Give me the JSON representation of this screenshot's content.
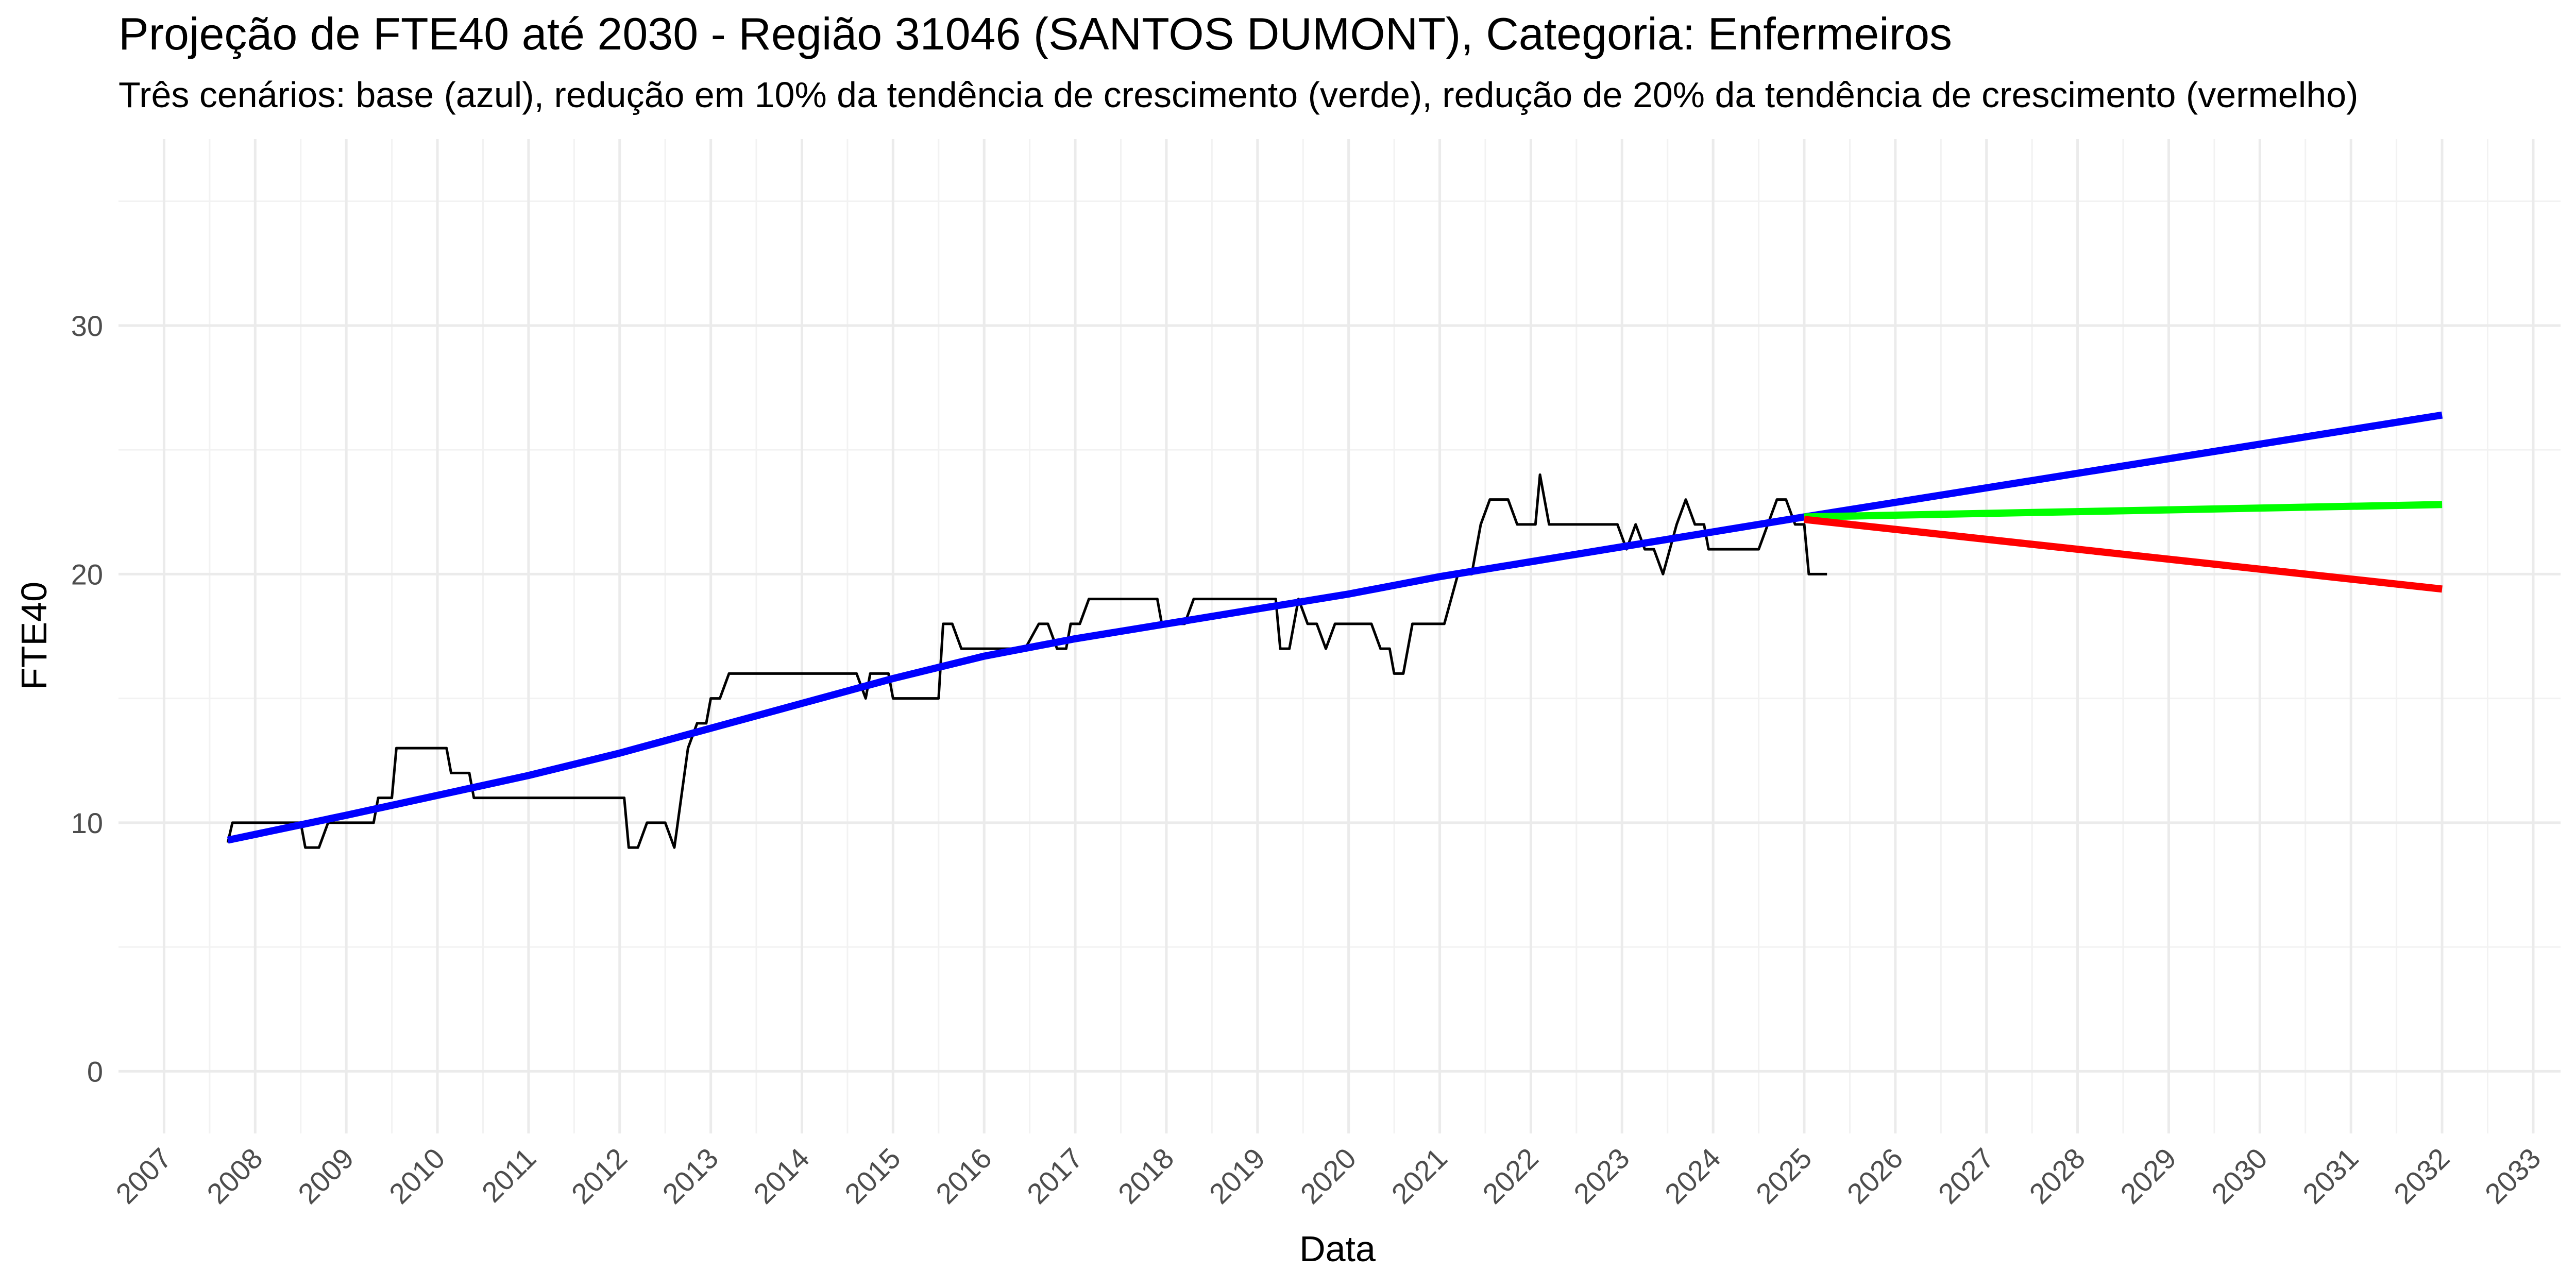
{
  "chart_data": {
    "type": "line",
    "title": "Projeção de FTE40 até 2030 - Região 31046 (SANTOS DUMONT), Categoria: Enfermeiros",
    "subtitle": "Três cenários: base (azul), redução em 10% da tendência de crescimento (verde), redução de 20% da tendência de crescimento (vermelho)",
    "xlabel": "Data",
    "ylabel": "FTE40",
    "xlim": [
      2006.5,
      2033.3
    ],
    "ylim": [
      -2.5,
      37.5
    ],
    "x_ticks": [
      2007,
      2008,
      2009,
      2010,
      2011,
      2012,
      2013,
      2014,
      2015,
      2016,
      2017,
      2018,
      2019,
      2020,
      2021,
      2022,
      2023,
      2024,
      2025,
      2026,
      2027,
      2028,
      2029,
      2030,
      2031,
      2032,
      2033
    ],
    "x_tick_labels": [
      "2007",
      "2008",
      "2009",
      "2010",
      "2011",
      "2012",
      "2013",
      "2014",
      "2015",
      "2016",
      "2017",
      "2018",
      "2019",
      "2020",
      "2021",
      "2022",
      "2023",
      "2024",
      "2025",
      "2026",
      "2027",
      "2028",
      "2029",
      "2030",
      "2031",
      "2032",
      "2033"
    ],
    "y_ticks": [
      0,
      10,
      20,
      30
    ],
    "y_tick_labels": [
      "0",
      "10",
      "20",
      "30"
    ],
    "grid": true,
    "legend": "none",
    "series": [
      {
        "color": "#000000",
        "points": [
          [
            2007.7,
            9.2
          ],
          [
            2007.75,
            10
          ],
          [
            2008.5,
            10
          ],
          [
            2008.55,
            9
          ],
          [
            2008.7,
            9
          ],
          [
            2008.8,
            10
          ],
          [
            2009.3,
            10
          ],
          [
            2009.35,
            11
          ],
          [
            2009.5,
            11
          ],
          [
            2009.55,
            13
          ],
          [
            2010.1,
            13
          ],
          [
            2010.15,
            12
          ],
          [
            2010.35,
            12
          ],
          [
            2010.4,
            11
          ],
          [
            2012.05,
            11
          ],
          [
            2012.1,
            9
          ],
          [
            2012.2,
            9
          ],
          [
            2012.3,
            10
          ],
          [
            2012.5,
            10
          ],
          [
            2012.6,
            9
          ],
          [
            2012.75,
            13
          ],
          [
            2012.85,
            14
          ],
          [
            2012.95,
            14
          ],
          [
            2013.0,
            15
          ],
          [
            2013.1,
            15
          ],
          [
            2013.2,
            16
          ],
          [
            2014.6,
            16
          ],
          [
            2014.7,
            15
          ],
          [
            2014.75,
            16
          ],
          [
            2014.95,
            16
          ],
          [
            2015.0,
            15
          ],
          [
            2015.5,
            15
          ],
          [
            2015.55,
            18
          ],
          [
            2015.65,
            18
          ],
          [
            2015.75,
            17
          ],
          [
            2016.45,
            17
          ],
          [
            2016.6,
            18
          ],
          [
            2016.7,
            18
          ],
          [
            2016.8,
            17
          ],
          [
            2016.9,
            17
          ],
          [
            2016.95,
            18
          ],
          [
            2017.05,
            18
          ],
          [
            2017.15,
            19
          ],
          [
            2017.9,
            19
          ],
          [
            2017.95,
            18
          ],
          [
            2018.2,
            18
          ],
          [
            2018.3,
            19
          ],
          [
            2019.2,
            19
          ],
          [
            2019.25,
            17
          ],
          [
            2019.35,
            17
          ],
          [
            2019.45,
            19
          ],
          [
            2019.55,
            18
          ],
          [
            2019.65,
            18
          ],
          [
            2019.75,
            17
          ],
          [
            2019.85,
            18
          ],
          [
            2020.25,
            18
          ],
          [
            2020.35,
            17
          ],
          [
            2020.45,
            17
          ],
          [
            2020.5,
            16
          ],
          [
            2020.6,
            16
          ],
          [
            2020.7,
            18
          ],
          [
            2021.05,
            18
          ],
          [
            2021.2,
            20
          ],
          [
            2021.35,
            20
          ],
          [
            2021.45,
            22
          ],
          [
            2021.55,
            23
          ],
          [
            2021.75,
            23
          ],
          [
            2021.85,
            22
          ],
          [
            2022.05,
            22
          ],
          [
            2022.1,
            24
          ],
          [
            2022.2,
            22
          ],
          [
            2022.95,
            22
          ],
          [
            2023.05,
            21
          ],
          [
            2023.15,
            22
          ],
          [
            2023.25,
            21
          ],
          [
            2023.35,
            21
          ],
          [
            2023.45,
            20
          ],
          [
            2023.6,
            22
          ],
          [
            2023.7,
            23
          ],
          [
            2023.8,
            22
          ],
          [
            2023.9,
            22
          ],
          [
            2023.95,
            21
          ],
          [
            2024.5,
            21
          ],
          [
            2024.6,
            22
          ],
          [
            2024.7,
            23
          ],
          [
            2024.8,
            23
          ],
          [
            2024.9,
            22
          ],
          [
            2025.0,
            22
          ],
          [
            2025.05,
            20
          ],
          [
            2025.25,
            20
          ]
        ]
      },
      {
        "color": "#0000ff",
        "points": [
          [
            2007.7,
            9.3
          ],
          [
            2009.0,
            10.3
          ],
          [
            2010.0,
            11.1
          ],
          [
            2011.0,
            11.9
          ],
          [
            2012.0,
            12.8
          ],
          [
            2013.0,
            13.8
          ],
          [
            2014.0,
            14.8
          ],
          [
            2015.0,
            15.8
          ],
          [
            2016.0,
            16.7
          ],
          [
            2017.0,
            17.4
          ],
          [
            2018.0,
            18.0
          ],
          [
            2019.0,
            18.6
          ],
          [
            2020.0,
            19.2
          ],
          [
            2021.0,
            19.9
          ],
          [
            2022.0,
            20.5
          ],
          [
            2023.0,
            21.1
          ],
          [
            2024.0,
            21.7
          ],
          [
            2025.0,
            22.3
          ],
          [
            2032.0,
            26.4
          ]
        ]
      },
      {
        "color": "#00ff00",
        "points": [
          [
            2025.0,
            22.3
          ],
          [
            2032.0,
            22.8
          ]
        ]
      },
      {
        "color": "#ff0000",
        "points": [
          [
            2025.0,
            22.2
          ],
          [
            2032.0,
            19.4
          ]
        ]
      }
    ]
  }
}
